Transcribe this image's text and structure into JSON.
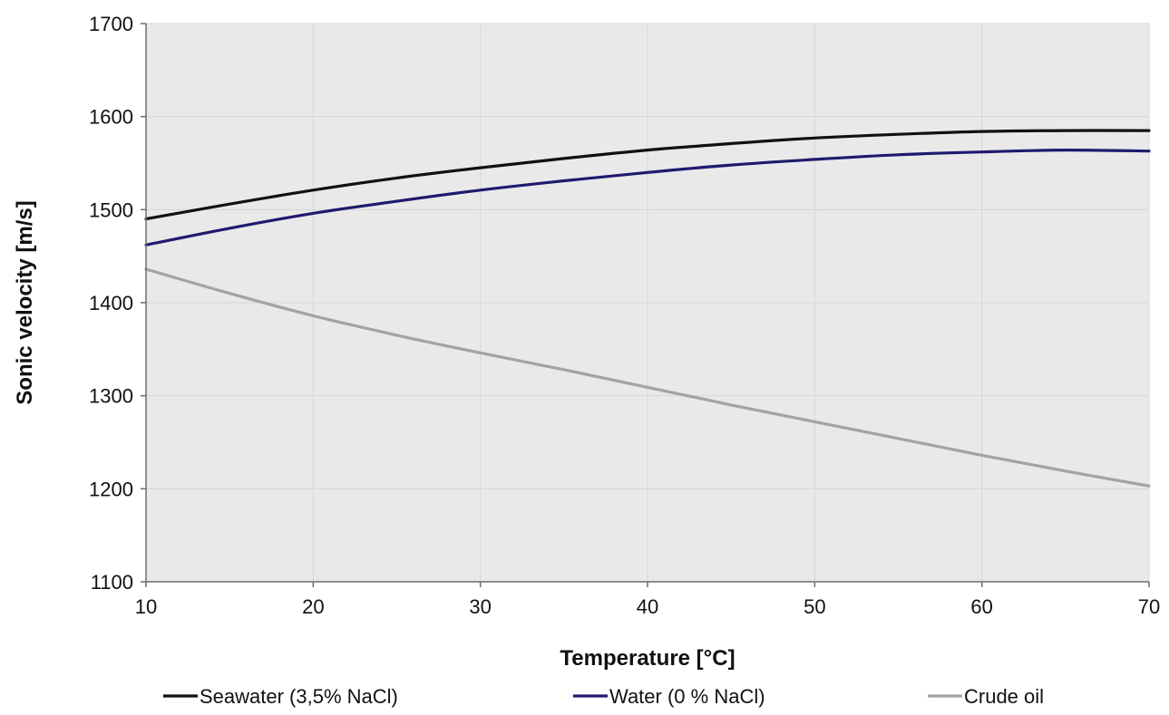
{
  "chart_data": {
    "type": "line",
    "title": "",
    "xlabel": "Temperature [°C]",
    "ylabel": "Sonic velocity [m/s]",
    "xlim": [
      10,
      70
    ],
    "ylim": [
      1100,
      1700
    ],
    "x_ticks": [
      "10",
      "20",
      "30",
      "40",
      "50",
      "60",
      "70"
    ],
    "y_ticks": [
      "1100",
      "1200",
      "1300",
      "1400",
      "1500",
      "1600",
      "1700"
    ],
    "grid": true,
    "legend_position": "bottom",
    "plot_background": "#e9e9e9",
    "series": [
      {
        "name": "Seawater (3,5% NaCl)",
        "color": "#111111",
        "x": [
          10,
          15,
          20,
          25,
          30,
          35,
          40,
          45,
          50,
          55,
          60,
          65,
          70
        ],
        "values": [
          1490,
          1506,
          1521,
          1534,
          1545,
          1555,
          1564,
          1571,
          1577,
          1581,
          1584,
          1585,
          1585
        ]
      },
      {
        "name": "Water (0 % NaCl)",
        "color": "#1f1a6e",
        "x": [
          10,
          15,
          20,
          25,
          30,
          35,
          40,
          45,
          50,
          55,
          60,
          65,
          70
        ],
        "values": [
          1462,
          1480,
          1496,
          1509,
          1521,
          1531,
          1540,
          1548,
          1554,
          1559,
          1562,
          1564,
          1563
        ]
      },
      {
        "name": "Crude oil",
        "color": "#a3a3a3",
        "x": [
          10,
          15,
          20,
          25,
          30,
          35,
          40,
          45,
          50,
          55,
          60,
          65,
          70
        ],
        "values": [
          1436,
          1410,
          1386,
          1365,
          1346,
          1328,
          1309,
          1290,
          1272,
          1254,
          1236,
          1219,
          1203
        ]
      }
    ]
  }
}
